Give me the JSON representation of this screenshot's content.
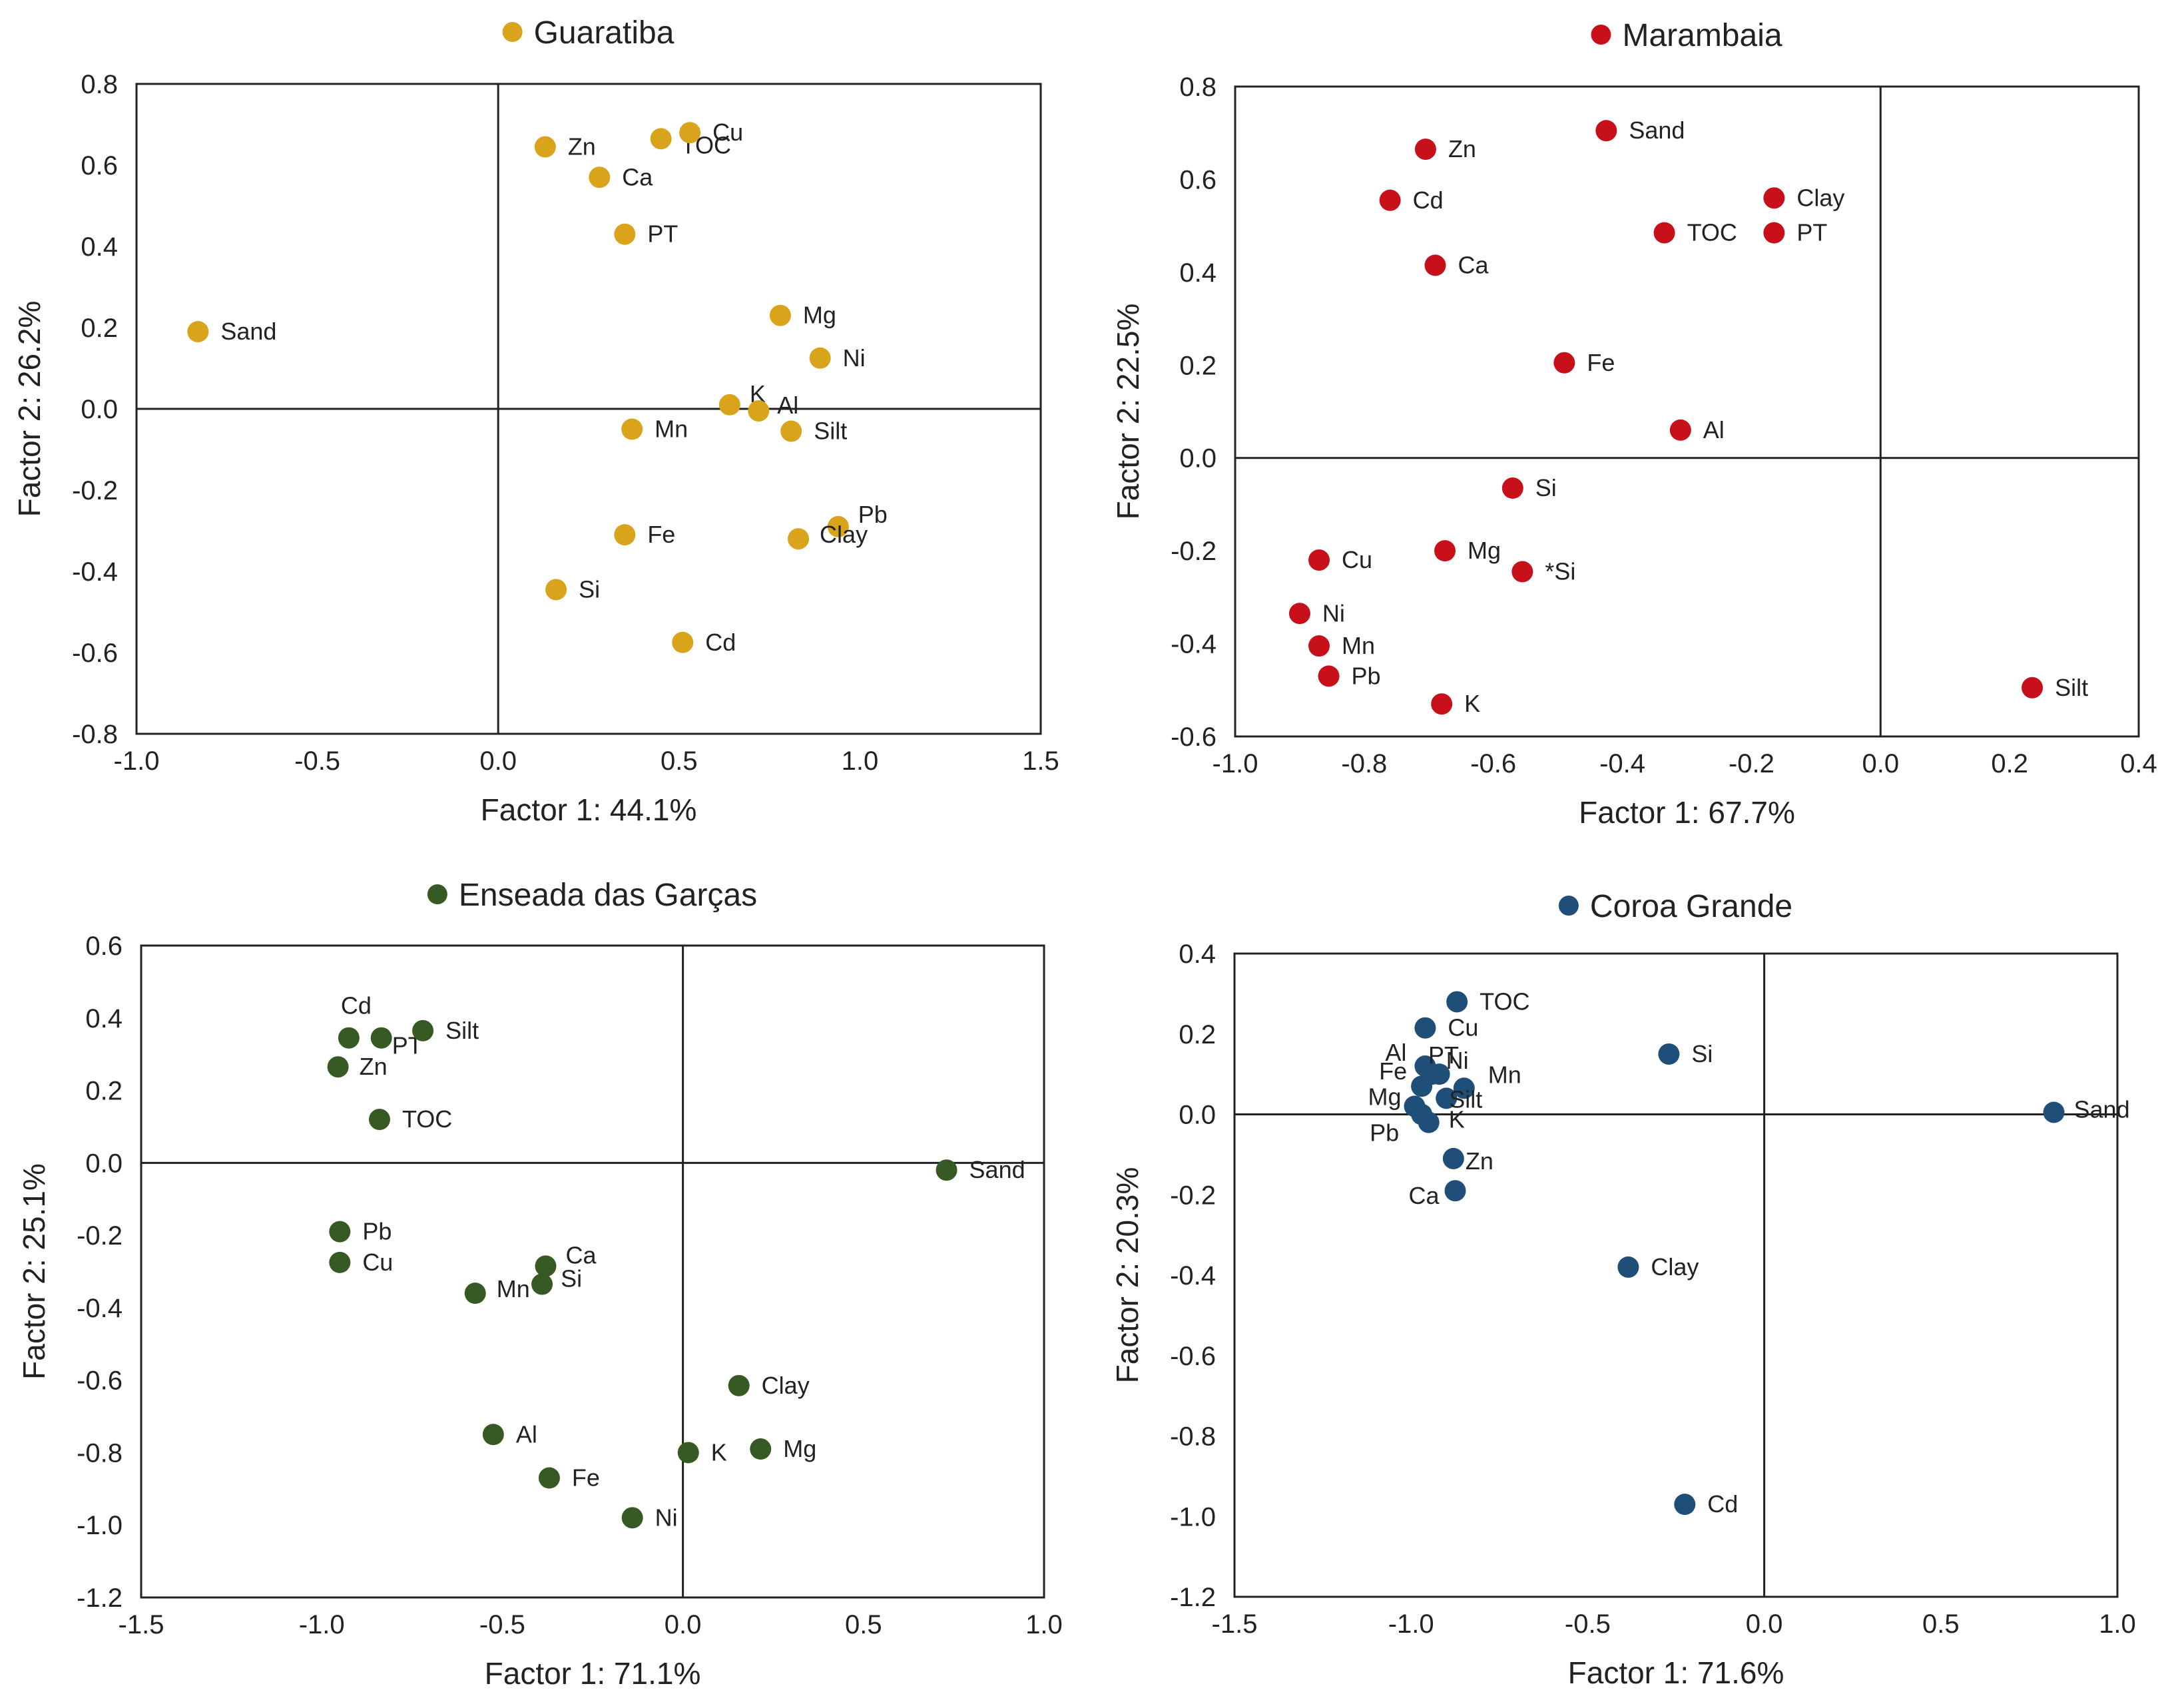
{
  "chart_data": [
    {
      "type": "scatter",
      "title": "Guaratiba",
      "legend": "Guaratiba",
      "color": "#D9A31C",
      "xlabel": "Factor 1: 44.1%",
      "ylabel": "Factor 2: 26.2%",
      "xlim": [
        -1.0,
        1.5
      ],
      "ylim": [
        -0.8,
        0.8
      ],
      "xticks": [
        -1.0,
        -0.5,
        0.0,
        0.5,
        1.0,
        1.5
      ],
      "yticks": [
        -0.8,
        -0.6,
        -0.4,
        -0.2,
        0.0,
        0.2,
        0.4,
        0.6,
        0.8
      ],
      "xtick_labels": [
        "-1.0",
        "-0.5",
        "0.0",
        "0.5",
        "1.0",
        "1.5"
      ],
      "ytick_labels": [
        "-0.8",
        "-0.6",
        "-0.4",
        "-0.2",
        "0.0",
        "0.2",
        "0.4",
        "0.6",
        "0.8"
      ],
      "points": [
        {
          "label": "Sand",
          "x": -0.83,
          "y": 0.19
        },
        {
          "label": "Zn",
          "x": 0.13,
          "y": 0.645
        },
        {
          "label": "TOC",
          "x": 0.45,
          "y": 0.665
        },
        {
          "label": "Cu",
          "x": 0.53,
          "y": 0.68
        },
        {
          "label": "Ca",
          "x": 0.28,
          "y": 0.57
        },
        {
          "label": "PT",
          "x": 0.35,
          "y": 0.43
        },
        {
          "label": "Mg",
          "x": 0.78,
          "y": 0.23
        },
        {
          "label": "Ni",
          "x": 0.89,
          "y": 0.125
        },
        {
          "label": "K",
          "x": 0.64,
          "y": 0.01
        },
        {
          "label": "Al",
          "x": 0.72,
          "y": -0.005
        },
        {
          "label": "Mn",
          "x": 0.37,
          "y": -0.05
        },
        {
          "label": "Silt",
          "x": 0.81,
          "y": -0.055
        },
        {
          "label": "Fe",
          "x": 0.35,
          "y": -0.31
        },
        {
          "label": "Pb",
          "x": 0.94,
          "y": -0.29
        },
        {
          "label": "Clay",
          "x": 0.83,
          "y": -0.32
        },
        {
          "label": "Si",
          "x": 0.16,
          "y": -0.445
        },
        {
          "label": "Cd",
          "x": 0.51,
          "y": -0.575
        }
      ]
    },
    {
      "type": "scatter",
      "title": "Marambaia",
      "legend": "Marambaia",
      "color": "#C8101A",
      "xlabel": "Factor 1: 67.7%",
      "ylabel": "Factor 2: 22.5%",
      "xlim": [
        -1.0,
        0.4
      ],
      "ylim": [
        -0.6,
        0.8
      ],
      "xticks": [
        -1.0,
        -0.8,
        -0.6,
        -0.4,
        -0.2,
        0.0,
        0.2,
        0.4
      ],
      "yticks": [
        -0.6,
        -0.4,
        -0.2,
        0.0,
        0.2,
        0.4,
        0.6,
        0.8
      ],
      "xtick_labels": [
        "-1.0",
        "-0.8",
        "-0.6",
        "-0.4",
        "-0.2",
        "0.0",
        "0.2",
        "0.4"
      ],
      "ytick_labels": [
        "-0.6",
        "-0.4",
        "-0.2",
        "0.0",
        "0.2",
        "0.4",
        "0.6",
        "0.8"
      ],
      "points": [
        {
          "label": "Sand",
          "x": -0.425,
          "y": 0.705
        },
        {
          "label": "Zn",
          "x": -0.705,
          "y": 0.665
        },
        {
          "label": "Cd",
          "x": -0.76,
          "y": 0.555
        },
        {
          "label": "Clay",
          "x": -0.165,
          "y": 0.56
        },
        {
          "label": "TOC",
          "x": -0.335,
          "y": 0.485
        },
        {
          "label": "PT",
          "x": -0.165,
          "y": 0.485
        },
        {
          "label": "Ca",
          "x": -0.69,
          "y": 0.415
        },
        {
          "label": "Fe",
          "x": -0.49,
          "y": 0.205
        },
        {
          "label": "Al",
          "x": -0.31,
          "y": 0.06
        },
        {
          "label": "Si",
          "x": -0.57,
          "y": -0.065
        },
        {
          "label": "Cu",
          "x": -0.87,
          "y": -0.22
        },
        {
          "label": "Mg",
          "x": -0.675,
          "y": -0.2
        },
        {
          "label": "*Si",
          "x": -0.555,
          "y": -0.245
        },
        {
          "label": "Ni",
          "x": -0.9,
          "y": -0.335
        },
        {
          "label": "Mn",
          "x": -0.87,
          "y": -0.405
        },
        {
          "label": "Pb",
          "x": -0.855,
          "y": -0.47
        },
        {
          "label": "K",
          "x": -0.68,
          "y": -0.53
        },
        {
          "label": "Silt",
          "x": 0.235,
          "y": -0.495
        }
      ]
    },
    {
      "type": "scatter",
      "title": "Enseada das Garças",
      "legend": "Enseada das Garças",
      "color": "#375A24",
      "xlabel": "Factor 1: 71.1%",
      "ylabel": "Factor 2: 25.1%",
      "xlim": [
        -1.5,
        1.0
      ],
      "ylim": [
        -1.2,
        0.6
      ],
      "xticks": [
        -1.5,
        -1.0,
        -0.5,
        0.0,
        0.5,
        1.0
      ],
      "yticks": [
        -1.2,
        -1.0,
        -0.8,
        -0.6,
        -0.4,
        -0.2,
        0.0,
        0.2,
        0.4,
        0.6
      ],
      "xtick_labels": [
        "-1.5",
        "-1.0",
        "-0.5",
        "0.0",
        "0.5",
        "1.0"
      ],
      "ytick_labels": [
        "-1.2",
        "-1.0",
        "-0.8",
        "-0.6",
        "-0.4",
        "-0.2",
        "0.0",
        "0.2",
        "0.4",
        "0.6"
      ],
      "points": [
        {
          "label": "Cd",
          "x": -0.925,
          "y": 0.345
        },
        {
          "label": "PT",
          "x": -0.835,
          "y": 0.345
        },
        {
          "label": "Silt",
          "x": -0.72,
          "y": 0.365
        },
        {
          "label": "Zn",
          "x": -0.955,
          "y": 0.265
        },
        {
          "label": "TOC",
          "x": -0.84,
          "y": 0.12
        },
        {
          "label": "Sand",
          "x": 0.73,
          "y": -0.02
        },
        {
          "label": "Pb",
          "x": -0.95,
          "y": -0.19
        },
        {
          "label": "Cu",
          "x": -0.95,
          "y": -0.275
        },
        {
          "label": "Ca",
          "x": -0.38,
          "y": -0.285
        },
        {
          "label": "Si",
          "x": -0.39,
          "y": -0.335
        },
        {
          "label": "Mn",
          "x": -0.575,
          "y": -0.36
        },
        {
          "label": "Clay",
          "x": 0.155,
          "y": -0.615
        },
        {
          "label": "Al",
          "x": -0.525,
          "y": -0.75
        },
        {
          "label": "K",
          "x": 0.015,
          "y": -0.8
        },
        {
          "label": "Mg",
          "x": 0.215,
          "y": -0.79
        },
        {
          "label": "Fe",
          "x": -0.37,
          "y": -0.87
        },
        {
          "label": "Ni",
          "x": -0.14,
          "y": -0.98
        }
      ]
    },
    {
      "type": "scatter",
      "title": "Coroa Grande",
      "legend": "Coroa Grande",
      "color": "#1F4E79",
      "xlabel": "Factor 1: 71.6%",
      "ylabel": "Factor 2: 20.3%",
      "xlim": [
        -1.5,
        1.0
      ],
      "ylim": [
        -1.2,
        0.4
      ],
      "xticks": [
        -1.5,
        -1.0,
        -0.5,
        0.0,
        0.5,
        1.0
      ],
      "yticks": [
        -1.2,
        -1.0,
        -0.8,
        -0.6,
        -0.4,
        -0.2,
        0.0,
        0.2,
        0.4
      ],
      "xtick_labels": [
        "-1.5",
        "-1.0",
        "-0.5",
        "0.0",
        "0.5",
        "1.0"
      ],
      "ytick_labels": [
        "-1.2",
        "-1.0",
        "-0.8",
        "-0.6",
        "-0.4",
        "-0.2",
        "0.0",
        "0.2",
        "0.4"
      ],
      "points": [
        {
          "label": "TOC",
          "x": -0.87,
          "y": 0.28
        },
        {
          "label": "Cu",
          "x": -0.96,
          "y": 0.215
        },
        {
          "label": "Si",
          "x": -0.27,
          "y": 0.15
        },
        {
          "label": "Al",
          "x": -0.96,
          "y": 0.12
        },
        {
          "label": "PT",
          "x": -0.94,
          "y": 0.1
        },
        {
          "label": "Ni",
          "x": -0.92,
          "y": 0.1
        },
        {
          "label": "Fe",
          "x": -0.97,
          "y": 0.07
        },
        {
          "label": "Mn",
          "x": -0.85,
          "y": 0.065
        },
        {
          "label": "Silt",
          "x": -0.9,
          "y": 0.04
        },
        {
          "label": "Mg",
          "x": -0.99,
          "y": 0.02
        },
        {
          "label": "K",
          "x": -0.95,
          "y": -0.02
        },
        {
          "label": "Pb",
          "x": -0.97,
          "y": 0.0
        },
        {
          "label": "Sand",
          "x": 0.82,
          "y": 0.005
        },
        {
          "label": "Zn",
          "x": -0.88,
          "y": -0.11
        },
        {
          "label": "Ca",
          "x": -0.875,
          "y": -0.19
        },
        {
          "label": "Clay",
          "x": -0.385,
          "y": -0.38
        },
        {
          "label": "Cd",
          "x": -0.225,
          "y": -0.97
        }
      ]
    }
  ]
}
